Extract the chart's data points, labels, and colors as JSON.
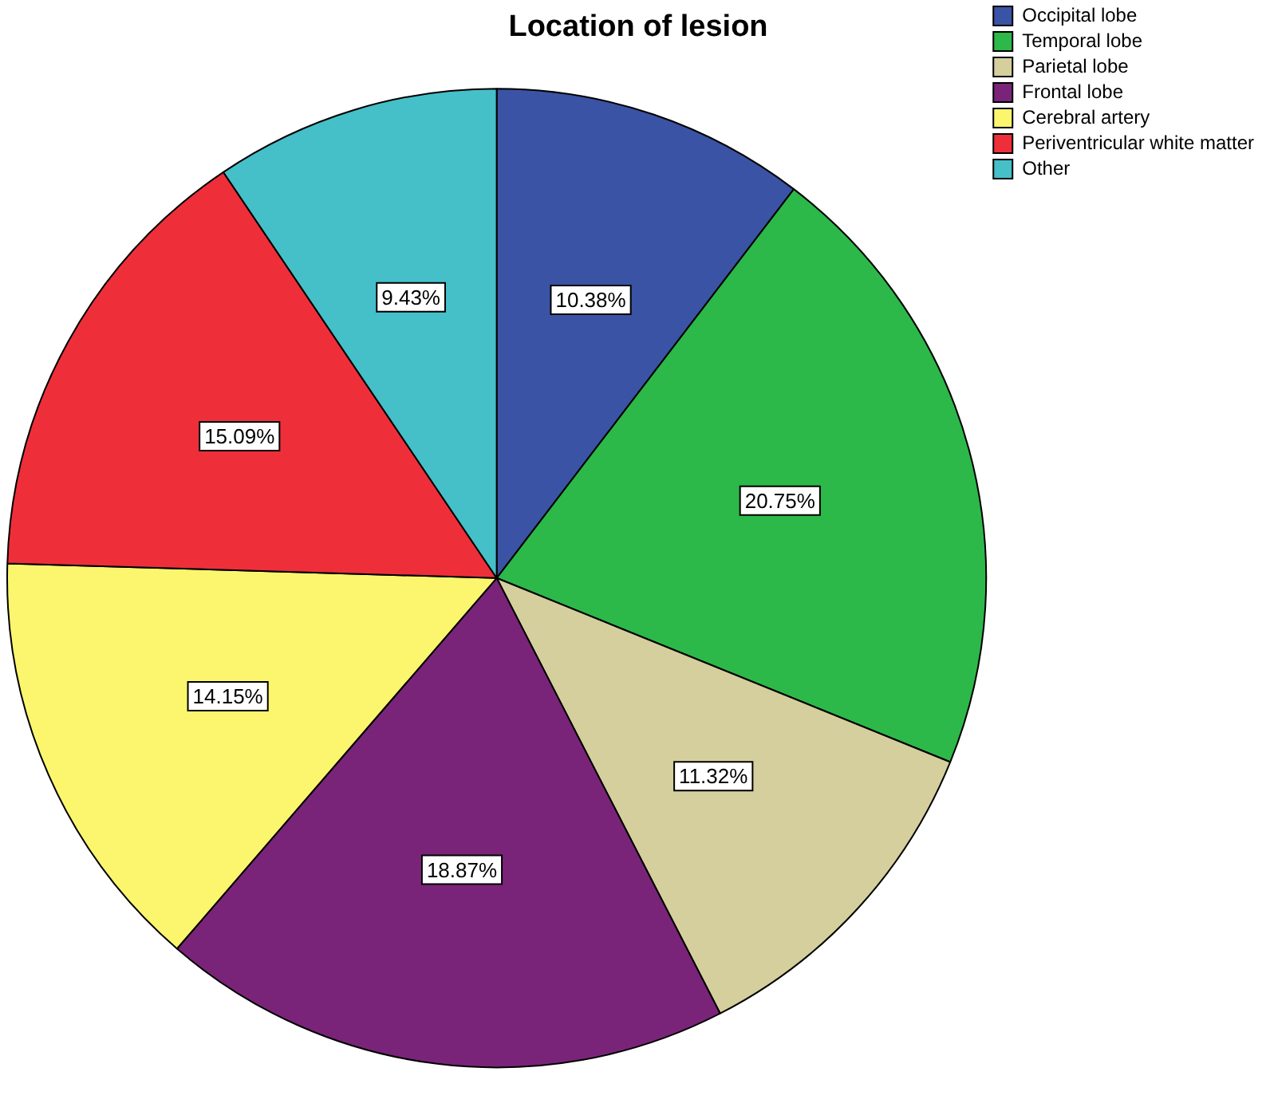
{
  "chart_data": {
    "type": "pie",
    "title": "Location of lesion",
    "categories": [
      "Occipital lobe",
      "Temporal lobe",
      "Parietal lobe",
      "Frontal lobe",
      "Cerebral artery",
      "Periventricular white matter",
      "Other"
    ],
    "values": [
      10.38,
      20.75,
      11.32,
      18.87,
      14.15,
      15.09,
      9.43
    ],
    "colors": [
      "#3a53a4",
      "#2db84a",
      "#d4cf9c",
      "#7a2479",
      "#fbf66e",
      "#ee2f3a",
      "#45bfc8"
    ],
    "value_labels": [
      "10.38%",
      "20.75%",
      "11.32%",
      "18.87%",
      "14.15%",
      "15.09%",
      "9.43%"
    ],
    "legend": "top right"
  }
}
